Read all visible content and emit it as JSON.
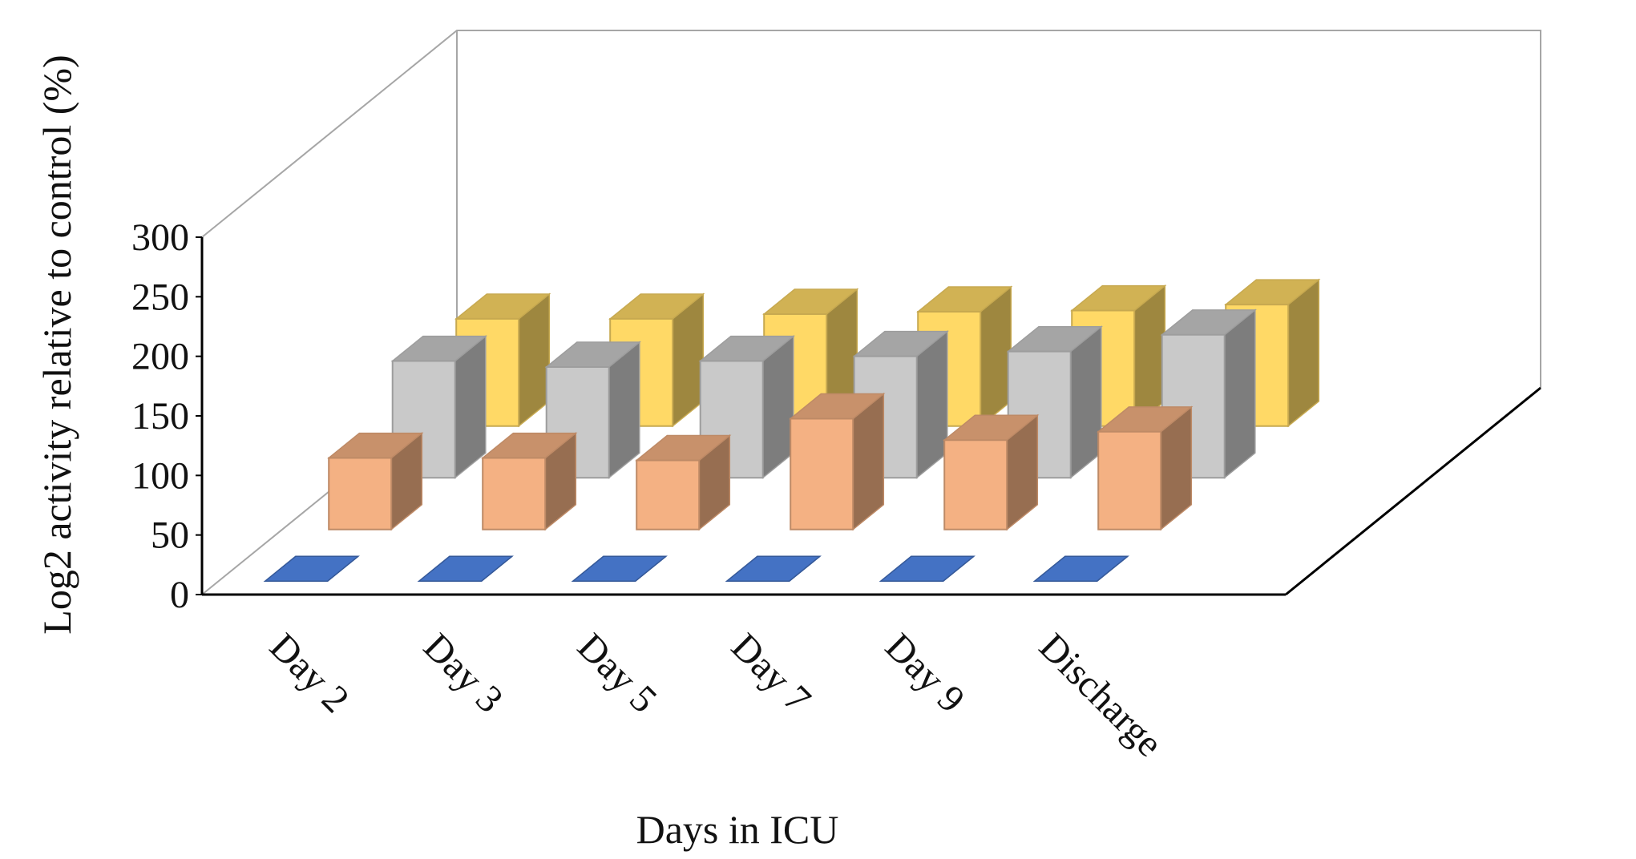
{
  "chart_data": {
    "type": "bar",
    "categories": [
      "Day 2",
      "Day 3",
      "Day 5",
      "Day 7",
      "Day 9",
      "Discharge"
    ],
    "series": [
      {
        "values": [
          0,
          0,
          0,
          0,
          0,
          0
        ],
        "color": "#4472C4"
      },
      {
        "values": [
          60,
          60,
          58,
          93,
          75,
          82
        ],
        "color": "#F4B183"
      },
      {
        "values": [
          98,
          93,
          98,
          102,
          106,
          120
        ],
        "color": "#C9C9C9"
      },
      {
        "values": [
          90,
          90,
          94,
          96,
          97,
          102
        ],
        "color": "#FFD966"
      }
    ],
    "xlabel": "Days in ICU",
    "ylabel": "Log2 activity relative to control (%)",
    "ylim": [
      0,
      300
    ],
    "yticks": [
      "0",
      "50",
      "100",
      "150",
      "200",
      "250",
      "300"
    ],
    "grid": false,
    "legend": "none"
  }
}
